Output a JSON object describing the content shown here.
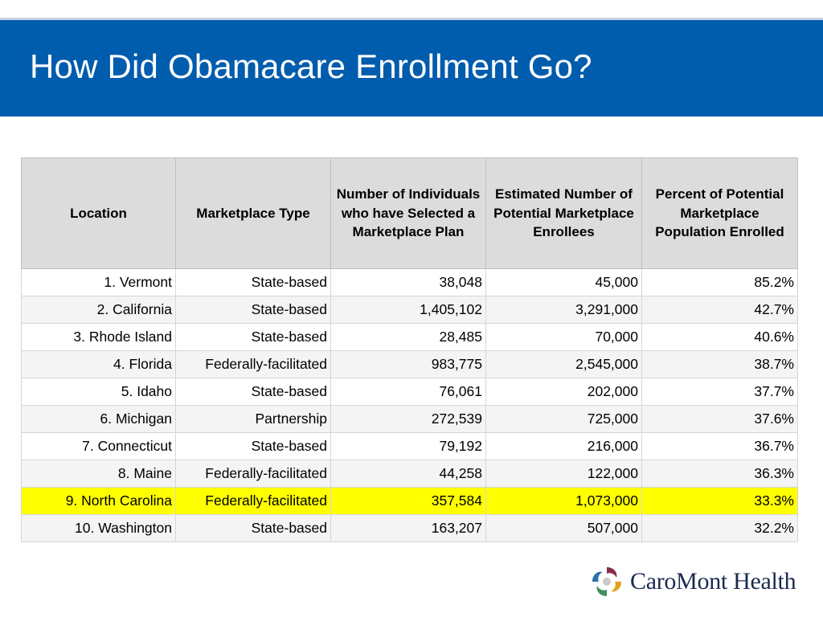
{
  "slide": {
    "title": "How Did Obamacare Enrollment Go?"
  },
  "table": {
    "headers": [
      "Location",
      "Marketplace Type",
      "Number of Individuals who have Selected a Marketplace Plan",
      "Estimated Number of Potential Marketplace Enrollees",
      "Percent of Potential Marketplace Population Enrolled"
    ],
    "rows": [
      [
        "1. Vermont",
        "State-based",
        "38,048",
        "45,000",
        "85.2%"
      ],
      [
        "2. California",
        "State-based",
        "1,405,102",
        "3,291,000",
        "42.7%"
      ],
      [
        "3. Rhode Island",
        "State-based",
        "28,485",
        "70,000",
        "40.6%"
      ],
      [
        "4. Florida",
        "Federally-facilitated",
        "983,775",
        "2,545,000",
        "38.7%"
      ],
      [
        "5. Idaho",
        "State-based",
        "76,061",
        "202,000",
        "37.7%"
      ],
      [
        "6. Michigan",
        "Partnership",
        "272,539",
        "725,000",
        "37.6%"
      ],
      [
        "7. Connecticut",
        "State-based",
        "79,192",
        "216,000",
        "36.7%"
      ],
      [
        "8. Maine",
        "Federally-facilitated",
        "44,258",
        "122,000",
        "36.3%"
      ],
      [
        "9. North Carolina",
        "Federally-facilitated",
        "357,584",
        "1,073,000",
        "33.3%"
      ],
      [
        "10. Washington",
        "State-based",
        "163,207",
        "507,000",
        "32.2%"
      ]
    ],
    "highlight_color": "#ffff00"
  },
  "logo": {
    "icon": "caromont-swirl-icon",
    "text": "CaroMont Health"
  },
  "colors": {
    "title_bar": "#005cad",
    "header_fill": "#dcdcdc"
  }
}
